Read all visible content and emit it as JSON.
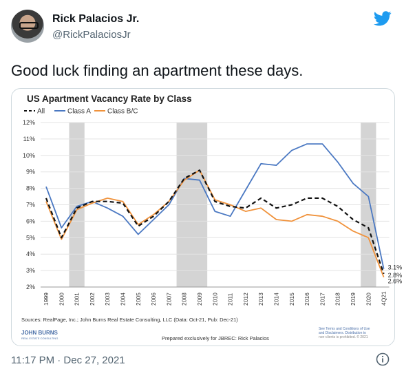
{
  "author": {
    "name": "Rick Palacios Jr.",
    "handle": "@RickPalaciosJr"
  },
  "tweet": {
    "text": "Good luck finding an apartment these days.",
    "timestamp": "11:17 PM · Dec 27, 2021"
  },
  "icons": {
    "brand": "twitter-bird-icon",
    "info": "info-circle-icon"
  },
  "colors": {
    "all": "#111111",
    "class_a": "#4a78c2",
    "class_bc": "#f0923b",
    "recession": "#d4d4d4",
    "twitter_blue": "#1d9bf0"
  },
  "chart_data": {
    "type": "line",
    "title": "US Apartment Vacancy Rate by Class",
    "categories": [
      "1999",
      "2000",
      "2001",
      "2002",
      "2003",
      "2004",
      "2005",
      "2006",
      "2007",
      "2008",
      "2009",
      "2010",
      "2011",
      "2012",
      "2013",
      "2014",
      "2015",
      "2016",
      "2017",
      "2018",
      "2019",
      "2020",
      "4Q21"
    ],
    "ylim": [
      2,
      12
    ],
    "yticks": [
      "12%",
      "11%",
      "10%",
      "9%",
      "8%",
      "7%",
      "6%",
      "5%",
      "4%",
      "3%",
      "2%"
    ],
    "legend_placement": "top-left",
    "recession_bands": [
      [
        "2001",
        "2001"
      ],
      [
        "2008",
        "2009"
      ],
      [
        "2020",
        "2020"
      ]
    ],
    "series": [
      {
        "name": "All",
        "style": "dashed",
        "values": [
          7.4,
          5.0,
          6.8,
          7.2,
          7.2,
          7.1,
          5.7,
          6.3,
          7.2,
          8.6,
          9.1,
          7.2,
          6.9,
          6.8,
          7.4,
          6.8,
          7.0,
          7.4,
          7.4,
          6.9,
          6.1,
          5.6,
          2.8
        ]
      },
      {
        "name": "Class A",
        "style": "solid",
        "values": [
          8.1,
          5.6,
          6.9,
          7.2,
          6.8,
          6.3,
          5.2,
          6.1,
          7.0,
          8.6,
          8.5,
          6.6,
          6.3,
          7.9,
          9.5,
          9.4,
          10.3,
          10.7,
          10.7,
          9.6,
          8.3,
          7.5,
          3.1
        ]
      },
      {
        "name": "Class B/C",
        "style": "solid",
        "values": [
          7.2,
          4.9,
          6.7,
          7.1,
          7.4,
          7.2,
          5.8,
          6.4,
          7.2,
          8.5,
          9.1,
          7.3,
          7.0,
          6.6,
          6.8,
          6.1,
          6.0,
          6.4,
          6.3,
          6.0,
          5.4,
          5.0,
          2.6
        ]
      }
    ],
    "end_labels": [
      "3.1%",
      "2.8%",
      "2.6%"
    ],
    "sources": "Sources: RealPage, Inc.; John Burns Real Estate Consulting, LLC (Data: Oct-21, Pub: Dec-21)",
    "prepared": "Prepared exclusively for JBREC: Rick Palacios",
    "logo_text": "JOHN BURNS",
    "logo_sub": "REAL ESTATE CONSULTING",
    "terms_line1": "See Terms and Conditions of Use",
    "terms_line2": "and Disclaimers. Distribution to",
    "terms_line3": "non-clients is prohibited. © 2021"
  }
}
